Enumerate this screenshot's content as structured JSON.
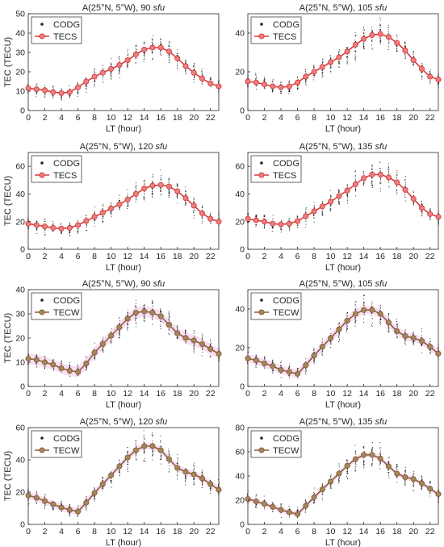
{
  "colors": {
    "codg_dot": "#222222",
    "tecs_line": "#d93a3a",
    "tecs_marker_fill": "#e88080",
    "tecw_line": "#8a5a3a",
    "tecw_marker_fill": "#a0885a",
    "tecw_band": "#f4c8e8",
    "axis": "#262626"
  },
  "chart_data": [
    {
      "type": "line",
      "title_main": "A(25°N, 5°W), 90",
      "title_unit": "sfu",
      "xlabel": "LT (hour)",
      "ylabel": "TEC (TECU)",
      "xlim": [
        0,
        23
      ],
      "ylim": [
        0,
        50
      ],
      "xticks": [
        0,
        2,
        4,
        6,
        8,
        10,
        12,
        14,
        16,
        18,
        20,
        22
      ],
      "yticks": [
        0,
        10,
        20,
        30,
        40,
        50
      ],
      "x": [
        0,
        1,
        2,
        3,
        4,
        5,
        6,
        7,
        8,
        9,
        10,
        11,
        12,
        13,
        14,
        15,
        16,
        17,
        18,
        19,
        20,
        21,
        22,
        23
      ],
      "model_name": "TECS",
      "model_style": "tecs",
      "series": [
        {
          "name": "CODG",
          "values": [
            11,
            11,
            10,
            9.5,
            8.5,
            8.5,
            11,
            14.5,
            17,
            19.5,
            21,
            23,
            25.5,
            28.5,
            31,
            32.5,
            32.5,
            30,
            27,
            23,
            20,
            17,
            14,
            12
          ]
        },
        {
          "name": "TECS",
          "values": [
            11.5,
            11,
            10.5,
            9.5,
            9,
            9.5,
            12,
            15,
            17.5,
            19.5,
            21.5,
            23.5,
            26,
            29,
            31.5,
            32.5,
            32.5,
            30.5,
            27,
            23,
            19.5,
            16.5,
            14,
            12.5
          ]
        }
      ],
      "legend": [
        "CODG",
        "TECS"
      ],
      "legend_position": "top-left"
    },
    {
      "type": "line",
      "title_main": "A(25°N, 5°W), 105",
      "title_unit": "sfu",
      "xlabel": "LT (hour)",
      "ylabel": "",
      "xlim": [
        0,
        23
      ],
      "ylim": [
        0,
        50
      ],
      "xticks": [
        0,
        2,
        4,
        6,
        8,
        10,
        12,
        14,
        16,
        18,
        20,
        22
      ],
      "yticks": [
        0,
        20,
        40
      ],
      "x": [
        0,
        1,
        2,
        3,
        4,
        5,
        6,
        7,
        8,
        9,
        10,
        11,
        12,
        13,
        14,
        15,
        16,
        17,
        18,
        19,
        20,
        21,
        22,
        23
      ],
      "model_name": "TECS",
      "model_style": "tecs",
      "series": [
        {
          "name": "CODG",
          "values": [
            15,
            14.5,
            13.5,
            12.5,
            11.5,
            12,
            14,
            17,
            19.5,
            22,
            24.5,
            27,
            30,
            33,
            36.5,
            38.5,
            39.5,
            38,
            35,
            31,
            26,
            21,
            17.5,
            15.5
          ]
        },
        {
          "name": "TECS",
          "values": [
            15,
            14.5,
            13.5,
            12.5,
            12,
            12.5,
            14.5,
            17.5,
            20,
            22.5,
            25,
            27.5,
            30.5,
            34,
            37,
            39,
            39.5,
            38,
            35,
            31,
            26,
            21.5,
            17.5,
            16
          ]
        }
      ],
      "legend": [
        "CODG",
        "TECS"
      ],
      "legend_position": "top-left"
    },
    {
      "type": "line",
      "title_main": "A(25°N, 5°W), 120",
      "title_unit": "sfu",
      "xlabel": "LT (hour)",
      "ylabel": "TEC (TECU)",
      "xlim": [
        0,
        23
      ],
      "ylim": [
        0,
        70
      ],
      "xticks": [
        0,
        2,
        4,
        6,
        8,
        10,
        12,
        14,
        16,
        18,
        20,
        22
      ],
      "yticks": [
        0,
        20,
        40,
        60
      ],
      "x": [
        0,
        1,
        2,
        3,
        4,
        5,
        6,
        7,
        8,
        9,
        10,
        11,
        12,
        13,
        14,
        15,
        16,
        17,
        18,
        19,
        20,
        21,
        22,
        23
      ],
      "model_name": "TECS",
      "model_style": "tecs",
      "series": [
        {
          "name": "CODG",
          "values": [
            18.5,
            17.5,
            16.5,
            15.5,
            14.5,
            15,
            16.5,
            19.5,
            23,
            26,
            29,
            32,
            35.5,
            39.5,
            43.5,
            46,
            46.5,
            45,
            41.5,
            37,
            31.5,
            26,
            22,
            20.5
          ]
        },
        {
          "name": "TECS",
          "values": [
            18.5,
            17.5,
            16.5,
            15.5,
            15,
            15.5,
            17.5,
            20.5,
            23.5,
            26.5,
            29.5,
            32.5,
            36,
            40,
            44,
            46,
            46.5,
            45.5,
            42,
            37,
            31.5,
            26,
            22,
            20
          ]
        }
      ],
      "legend": [
        "CODG",
        "TECS"
      ],
      "legend_position": "top-left"
    },
    {
      "type": "line",
      "title_main": "A(25°N, 5°W), 135",
      "title_unit": "sfu",
      "xlabel": "LT (hour)",
      "ylabel": "",
      "xlim": [
        0,
        23
      ],
      "ylim": [
        0,
        70
      ],
      "xticks": [
        0,
        2,
        4,
        6,
        8,
        10,
        12,
        14,
        16,
        18,
        20,
        22
      ],
      "yticks": [
        0,
        20,
        40,
        60
      ],
      "x": [
        0,
        1,
        2,
        3,
        4,
        5,
        6,
        7,
        8,
        9,
        10,
        11,
        12,
        13,
        14,
        15,
        16,
        17,
        18,
        19,
        20,
        21,
        22,
        23
      ],
      "model_name": "TECS",
      "model_style": "tecs",
      "series": [
        {
          "name": "CODG",
          "values": [
            22,
            21,
            19.5,
            18.5,
            17.5,
            18,
            20,
            23.5,
            27,
            30.5,
            34,
            38,
            42,
            46.5,
            51,
            53.5,
            54,
            52.5,
            48.5,
            43,
            36.5,
            30,
            25,
            23
          ]
        },
        {
          "name": "TECS",
          "values": [
            22,
            21,
            20,
            18.5,
            18,
            18.5,
            20.5,
            24,
            27.5,
            31,
            34.5,
            38.5,
            42.5,
            47,
            51.5,
            54,
            54,
            52,
            48.5,
            43,
            36.5,
            30,
            25.5,
            23.5
          ]
        }
      ],
      "legend": [
        "CODG",
        "TECS"
      ],
      "legend_position": "top-left"
    },
    {
      "type": "line",
      "title_main": "A(25°N, 5°W), 90",
      "title_unit": "sfu",
      "xlabel": "LT (hour)",
      "ylabel": "TEC (TECU)",
      "xlim": [
        0,
        23
      ],
      "ylim": [
        0,
        40
      ],
      "xticks": [
        0,
        2,
        4,
        6,
        8,
        10,
        12,
        14,
        16,
        18,
        20,
        22
      ],
      "yticks": [
        0,
        10,
        20,
        30,
        40
      ],
      "x": [
        0,
        1,
        2,
        3,
        4,
        5,
        6,
        7,
        8,
        9,
        10,
        11,
        12,
        13,
        14,
        15,
        16,
        17,
        18,
        19,
        20,
        21,
        22,
        23
      ],
      "model_name": "TECW",
      "model_style": "tecw",
      "series": [
        {
          "name": "CODG",
          "values": [
            11.5,
            11,
            10,
            9,
            8,
            7,
            6.5,
            9,
            13.5,
            17,
            20.5,
            24,
            27.5,
            30,
            31,
            30.5,
            29,
            26,
            22.5,
            20,
            19,
            17.5,
            15.5,
            13.5
          ]
        },
        {
          "name": "TECW",
          "values": [
            11.5,
            11,
            10,
            9,
            7.5,
            6.5,
            6,
            9.5,
            14,
            17.5,
            21,
            24.5,
            28,
            30.5,
            31,
            30.5,
            29,
            25.5,
            22,
            20,
            19,
            17.5,
            15.5,
            13.5
          ]
        }
      ],
      "legend": [
        "CODG",
        "TECW"
      ],
      "legend_position": "top-left"
    },
    {
      "type": "line",
      "title_main": "A(25°N, 5°W), 105",
      "title_unit": "sfu",
      "xlabel": "LT (hour)",
      "ylabel": "",
      "xlim": [
        0,
        23
      ],
      "ylim": [
        0,
        50
      ],
      "xticks": [
        0,
        2,
        4,
        6,
        8,
        10,
        12,
        14,
        16,
        18,
        20,
        22
      ],
      "yticks": [
        0,
        20,
        40
      ],
      "x": [
        0,
        1,
        2,
        3,
        4,
        5,
        6,
        7,
        8,
        9,
        10,
        11,
        12,
        13,
        14,
        15,
        16,
        17,
        18,
        19,
        20,
        21,
        22,
        23
      ],
      "model_name": "TECW",
      "model_style": "tecw",
      "series": [
        {
          "name": "CODG",
          "values": [
            14.5,
            13.5,
            12,
            10.5,
            9,
            8,
            7,
            10.5,
            15.5,
            20,
            24.5,
            29,
            33.5,
            37,
            39.5,
            39.5,
            37.5,
            33.5,
            29,
            26,
            25,
            23.5,
            20.5,
            17.5
          ]
        },
        {
          "name": "TECW",
          "values": [
            14.5,
            13.5,
            12,
            10.5,
            8.5,
            7.5,
            6.5,
            11,
            16,
            20.5,
            25,
            29.5,
            34,
            37.5,
            39.5,
            39.5,
            37.5,
            33,
            28.5,
            26,
            25,
            23.5,
            20.5,
            17
          ]
        }
      ],
      "legend": [
        "CODG",
        "TECW"
      ],
      "legend_position": "top-left"
    },
    {
      "type": "line",
      "title_main": "A(25°N, 5°W), 120",
      "title_unit": "sfu",
      "xlabel": "LT (hour)",
      "ylabel": "TEC (TECU)",
      "xlim": [
        0,
        23
      ],
      "ylim": [
        0,
        60
      ],
      "xticks": [
        0,
        2,
        4,
        6,
        8,
        10,
        12,
        14,
        16,
        18,
        20,
        22
      ],
      "yticks": [
        0,
        20,
        40,
        60
      ],
      "x": [
        0,
        1,
        2,
        3,
        4,
        5,
        6,
        7,
        8,
        9,
        10,
        11,
        12,
        13,
        14,
        15,
        16,
        17,
        18,
        19,
        20,
        21,
        22,
        23
      ],
      "model_name": "TECW",
      "model_style": "tecw",
      "series": [
        {
          "name": "CODG",
          "values": [
            18,
            16.5,
            14.5,
            12.5,
            10.5,
            9,
            8,
            13,
            19,
            24.5,
            30,
            35.5,
            41,
            45.5,
            48.5,
            48.5,
            46,
            41,
            35.5,
            32.5,
            31,
            28.5,
            25,
            21.5
          ]
        },
        {
          "name": "TECW",
          "values": [
            18,
            16.5,
            14.5,
            12.5,
            10.5,
            9,
            8,
            13.5,
            19.5,
            25,
            30.5,
            36,
            41.5,
            46,
            48.5,
            48.5,
            46,
            40.5,
            35,
            32.5,
            31,
            28.5,
            25,
            21.5
          ]
        }
      ],
      "legend": [
        "CODG",
        "TECW"
      ],
      "legend_position": "top-left"
    },
    {
      "type": "line",
      "title_main": "A(25°N, 5°W), 135",
      "title_unit": "sfu",
      "xlabel": "LT (hour)",
      "ylabel": "",
      "xlim": [
        0,
        23
      ],
      "ylim": [
        0,
        80
      ],
      "xticks": [
        0,
        2,
        4,
        6,
        8,
        10,
        12,
        14,
        16,
        18,
        20,
        22
      ],
      "yticks": [
        0,
        20,
        40,
        60,
        80
      ],
      "x": [
        0,
        1,
        2,
        3,
        4,
        5,
        6,
        7,
        8,
        9,
        10,
        11,
        12,
        13,
        14,
        15,
        16,
        17,
        18,
        19,
        20,
        21,
        22,
        23
      ],
      "model_name": "TECW",
      "model_style": "tecw",
      "series": [
        {
          "name": "CODG",
          "values": [
            21,
            19,
            17,
            14.5,
            12,
            10.5,
            9,
            15,
            22,
            28.5,
            35,
            41.5,
            48,
            53.5,
            57,
            57,
            54.5,
            48.5,
            42.5,
            39,
            37.5,
            34,
            29.5,
            25
          ]
        },
        {
          "name": "TECW",
          "values": [
            21,
            19,
            17,
            14.5,
            12,
            10,
            8.5,
            15.5,
            22.5,
            29,
            35.5,
            42,
            48.5,
            54,
            57.5,
            57.5,
            54.5,
            48,
            42,
            39,
            37.5,
            34,
            29.5,
            25
          ]
        }
      ],
      "legend": [
        "CODG",
        "TECW"
      ],
      "legend_position": "top-left"
    }
  ]
}
